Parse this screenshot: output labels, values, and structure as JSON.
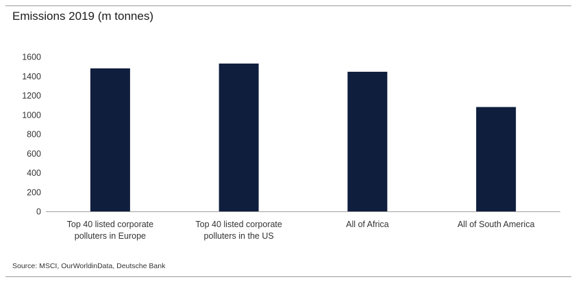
{
  "chart_data": {
    "type": "bar",
    "title": "Emissions 2019 (m tonnes)",
    "categories": [
      [
        "Top 40 listed corporate",
        "polluters in Europe"
      ],
      [
        "Top 40 listed corporate",
        "polluters in the US"
      ],
      [
        "All of Africa"
      ],
      [
        "All of South America"
      ]
    ],
    "values": [
      1480,
      1530,
      1445,
      1080
    ],
    "ylim": [
      0,
      1600
    ],
    "yticks": [
      0,
      200,
      400,
      600,
      800,
      1000,
      1200,
      1400,
      1600
    ],
    "xlabel": "",
    "ylabel": "",
    "grid": false,
    "bar_color": "#0f1e3d"
  },
  "source": "Source: MSCI, OurWorldinData, Deutsche Bank"
}
